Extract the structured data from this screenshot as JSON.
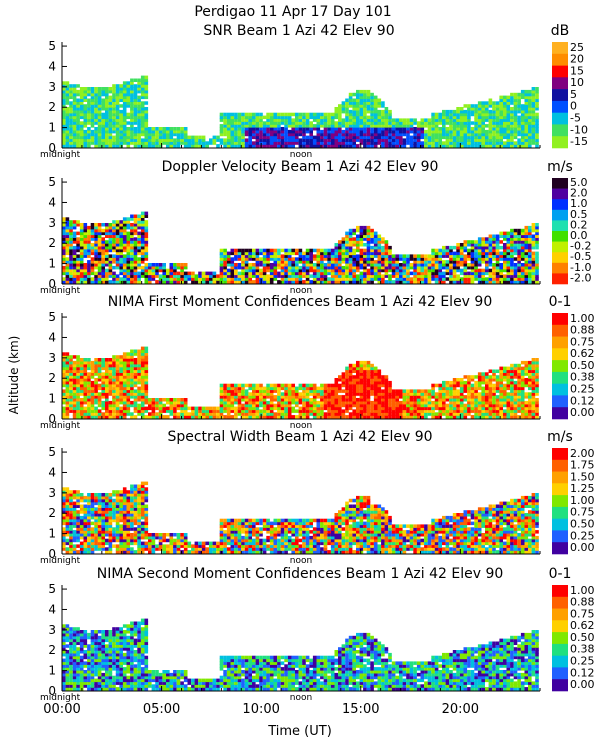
{
  "header": {
    "line1": "Perdigao  11 Apr 17 Day 101",
    "line2": "SNR Beam 1 Azi  42 Elev 90"
  },
  "shared": {
    "ylabel": "Altitude (km)",
    "xlabel": "Time (UT)",
    "midnight_label": "midnight",
    "noon_label": "noon",
    "xtick_labels": [
      "00:00",
      "05:00",
      "10:00",
      "15:00",
      "20:00"
    ],
    "xticks_hours": [
      0,
      5,
      10,
      15,
      20
    ],
    "xlim_hours": [
      0,
      24
    ],
    "ylim_km": [
      0,
      5.2
    ],
    "ytick_labels": [
      "0",
      "1",
      "2",
      "3",
      "4",
      "5"
    ]
  },
  "chart_data": [
    {
      "type": "heatmap",
      "title": "SNR Beam 1 Azi  42 Elev 90",
      "units": "dB",
      "colorbar_labels": [
        "25",
        "20",
        "15",
        "10",
        "5",
        "0",
        "-5",
        "-10",
        "-15"
      ],
      "colorbar_colors": [
        "#ffb020",
        "#ff8c00",
        "#ff0000",
        "#800080",
        "#1010a0",
        "#0050ff",
        "#00c0e0",
        "#40e060",
        "#90f020"
      ]
    },
    {
      "type": "heatmap",
      "title": "Doppler Velocity Beam 1 Azi  42 Elev 90",
      "units": "m/s",
      "colorbar_labels": [
        "5.0",
        "2.0",
        "1.0",
        "0.5",
        "0.2",
        "0.0",
        "-0.2",
        "-0.5",
        "-1.0",
        "-2.0"
      ],
      "colorbar_colors": [
        "#200020",
        "#5000a0",
        "#0030ff",
        "#00a0f0",
        "#20e0b0",
        "#40e000",
        "#c0f000",
        "#ffd000",
        "#ff8000",
        "#ff2000"
      ]
    },
    {
      "type": "heatmap",
      "title": "NIMA First Moment Confidences Beam 1 Azi  42 Elev 90",
      "units": "0-1",
      "colorbar_labels": [
        "1.00",
        "0.88",
        "0.75",
        "0.62",
        "0.50",
        "0.38",
        "0.25",
        "0.12",
        "0.00"
      ],
      "colorbar_colors": [
        "#ff0000",
        "#ff6000",
        "#ffa000",
        "#ffd000",
        "#80e800",
        "#20e080",
        "#00c0e0",
        "#2060ff",
        "#4000a0"
      ]
    },
    {
      "type": "heatmap",
      "title": "Spectral Width Beam 1 Azi  42 Elev 90",
      "units": "m/s",
      "colorbar_labels": [
        "2.00",
        "1.75",
        "1.50",
        "1.25",
        "1.00",
        "0.75",
        "0.50",
        "0.25",
        "0.00"
      ],
      "colorbar_colors": [
        "#ff0000",
        "#ff6000",
        "#ffa000",
        "#ffd000",
        "#80e800",
        "#20e080",
        "#00c0e0",
        "#2060ff",
        "#4000a0"
      ]
    },
    {
      "type": "heatmap",
      "title": "NIMA Second Moment Confidences Beam 1 Azi  42 Elev 90",
      "units": "0-1",
      "colorbar_labels": [
        "1.00",
        "0.88",
        "0.75",
        "0.62",
        "0.50",
        "0.38",
        "0.25",
        "0.12",
        "0.00"
      ],
      "colorbar_colors": [
        "#ff0000",
        "#ff6000",
        "#ffa000",
        "#ffd000",
        "#80e800",
        "#20e080",
        "#00c0e0",
        "#2060ff",
        "#4000a0"
      ]
    }
  ]
}
